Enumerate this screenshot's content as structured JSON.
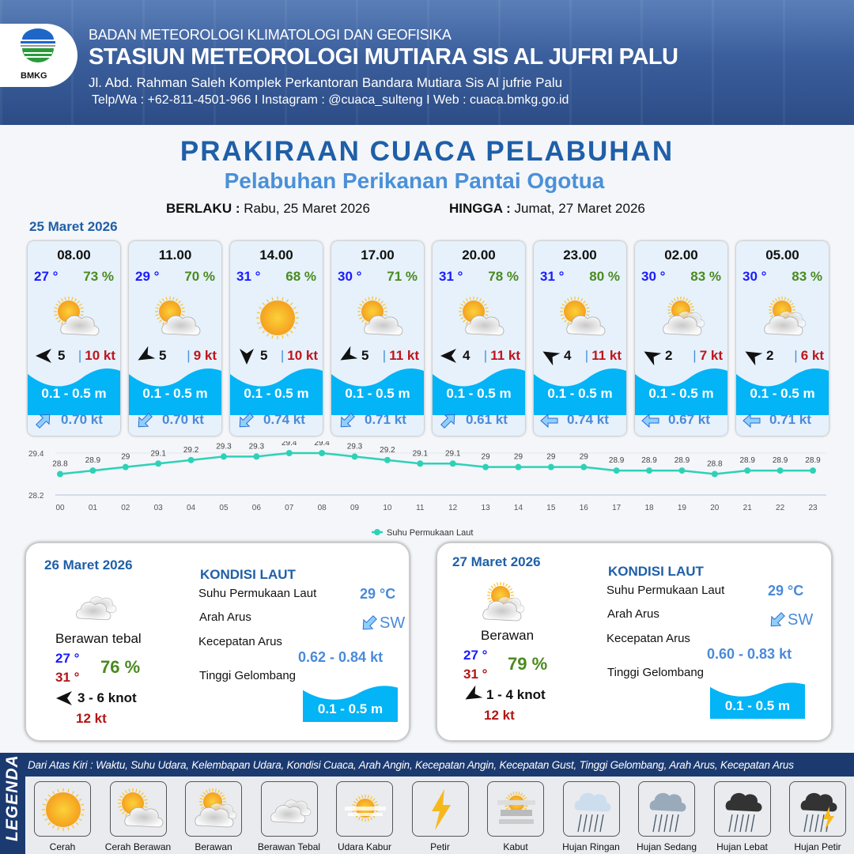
{
  "header": {
    "logo_text": "BMKG",
    "agency": "BADAN METEOROLOGI KLIMATOLOGI DAN GEOFISIKA",
    "station": "STASIUN METEOROLOGI MUTIARA SIS AL JUFRI PALU",
    "address": "Jl. Abd. Rahman Saleh Komplek Perkantoran Bandara Mutiara Sis Al jufrie Palu",
    "contact": "Telp/Wa : +62-811-4501-966  I  Instagram : @cuaca_sulteng  I  Web : cuaca.bmkg.go.id"
  },
  "title": "PRAKIRAAN CUACA PELABUHAN",
  "subtitle": "Pelabuhan Perikanan Pantai Ogotua",
  "validity": {
    "from_label": "BERLAKU :",
    "from": "Rabu, 25 Maret 2026",
    "to_label": "HINGGA :",
    "to": "Jumat, 27 Maret 2026"
  },
  "day1": {
    "date": "25 Maret 2026",
    "forecasts": [
      {
        "time": "08.00",
        "temp": "27 °",
        "humidity": "73 %",
        "weather": "cerah-berawan",
        "wind_dir_deg": 90,
        "wind_speed": "5",
        "gust": "10 kt",
        "wave": "0.1 - 0.5 m",
        "current_dir_deg": 45,
        "current_speed": "0.70 kt"
      },
      {
        "time": "11.00",
        "temp": "29 °",
        "humidity": "70 %",
        "weather": "cerah-berawan",
        "wind_dir_deg": 60,
        "wind_speed": "5",
        "gust": "9 kt",
        "wave": "0.1 - 0.5 m",
        "current_dir_deg": 225,
        "current_speed": "0.70 kt"
      },
      {
        "time": "14.00",
        "temp": "31 °",
        "humidity": "68 %",
        "weather": "cerah",
        "wind_dir_deg": 0,
        "wind_speed": "5",
        "gust": "10 kt",
        "wave": "0.1 - 0.5 m",
        "current_dir_deg": 225,
        "current_speed": "0.74 kt"
      },
      {
        "time": "17.00",
        "temp": "30 °",
        "humidity": "71 %",
        "weather": "cerah-berawan",
        "wind_dir_deg": 60,
        "wind_speed": "5",
        "gust": "11 kt",
        "wave": "0.1 - 0.5 m",
        "current_dir_deg": 225,
        "current_speed": "0.71 kt"
      },
      {
        "time": "20.00",
        "temp": "31 °",
        "humidity": "78 %",
        "weather": "cerah-berawan",
        "wind_dir_deg": 90,
        "wind_speed": "4",
        "gust": "11 kt",
        "wave": "0.1 - 0.5 m",
        "current_dir_deg": 45,
        "current_speed": "0.61 kt"
      },
      {
        "time": "23.00",
        "temp": "31 °",
        "humidity": "80 %",
        "weather": "cerah-berawan",
        "wind_dir_deg": 120,
        "wind_speed": "4",
        "gust": "11 kt",
        "wave": "0.1 - 0.5 m",
        "current_dir_deg": 270,
        "current_speed": "0.74 kt"
      },
      {
        "time": "02.00",
        "temp": "30 °",
        "humidity": "83 %",
        "weather": "berawan",
        "wind_dir_deg": 120,
        "wind_speed": "2",
        "gust": "7 kt",
        "wave": "0.1 - 0.5 m",
        "current_dir_deg": 270,
        "current_speed": "0.67 kt"
      },
      {
        "time": "05.00",
        "temp": "30 °",
        "humidity": "83 %",
        "weather": "berawan",
        "wind_dir_deg": 120,
        "wind_speed": "2",
        "gust": "6 kt",
        "wave": "0.1 - 0.5 m",
        "current_dir_deg": 270,
        "current_speed": "0.71 kt"
      }
    ]
  },
  "chart_data": {
    "type": "line",
    "x": [
      "00",
      "01",
      "02",
      "03",
      "04",
      "05",
      "06",
      "07",
      "08",
      "09",
      "10",
      "11",
      "12",
      "13",
      "14",
      "15",
      "16",
      "17",
      "18",
      "19",
      "20",
      "21",
      "22",
      "23"
    ],
    "series": [
      {
        "name": "Suhu Permukaan Laut",
        "values": [
          28.8,
          28.9,
          29.0,
          29.1,
          29.2,
          29.3,
          29.3,
          29.4,
          29.4,
          29.3,
          29.2,
          29.1,
          29.1,
          29.0,
          29.0,
          29.0,
          29.0,
          28.9,
          28.9,
          28.9,
          28.8,
          28.9,
          28.9,
          28.9
        ],
        "color": "#2ed1b8"
      }
    ],
    "y_ticks": [
      "28.2",
      "29.4"
    ],
    "ylim": [
      28.2,
      29.4
    ],
    "legend": "bottom",
    "grid": true
  },
  "outlook": [
    {
      "date": "26 Maret 2026",
      "weather": "berawan-tebal",
      "condition": "Berawan tebal",
      "temp_min": "27 °",
      "temp_max": "31 °",
      "humidity": "76 %",
      "wind_dir_deg": 90,
      "wind": "3  - 6 knot",
      "gust": "12 kt",
      "sea": {
        "heading": "KONDISI LAUT",
        "sst_label": "Suhu Permukaan Laut",
        "sst": "29 °C",
        "dir_label": "Arah Arus",
        "dir": "SW",
        "current_dir_deg": 225,
        "speed_label": "Kecepatan Arus",
        "speed": "0.62  - 0.84 kt",
        "wave_label": "Tinggi Gelombang",
        "wave": "0.1 - 0.5 m"
      }
    },
    {
      "date": "27 Maret 2026",
      "weather": "berawan",
      "condition": "Berawan",
      "temp_min": "27 °",
      "temp_max": "31 °",
      "humidity": "79 %",
      "wind_dir_deg": 60,
      "wind": "1  - 4 knot",
      "gust": "12 kt",
      "sea": {
        "heading": "KONDISI LAUT",
        "sst_label": "Suhu Permukaan Laut",
        "sst": "29 °C",
        "dir_label": "Arah Arus",
        "dir": "SW",
        "current_dir_deg": 225,
        "speed_label": "Kecepatan Arus",
        "speed": "0.60  - 0.83 kt",
        "wave_label": "Tinggi Gelombang",
        "wave": "0.1 - 0.5 m"
      }
    }
  ],
  "legend": {
    "title": "LEGENDA",
    "description": "Dari Atas Kiri : Waktu, Suhu Udara, Kelembapan Udara, Kondisi Cuaca, Arah Angin, Kecepatan Angin, Kecepatan Gust, Tinggi Gelombang, Arah Arus, Kecepatan Arus",
    "items": [
      {
        "label": "Cerah",
        "icon": "cerah"
      },
      {
        "label": "Cerah Berawan",
        "icon": "cerah-berawan"
      },
      {
        "label": "Berawan",
        "icon": "berawan"
      },
      {
        "label": "Berawan Tebal",
        "icon": "berawan-tebal"
      },
      {
        "label": "Udara Kabur",
        "icon": "udara-kabur"
      },
      {
        "label": "Petir",
        "icon": "petir"
      },
      {
        "label": "Kabut",
        "icon": "kabut"
      },
      {
        "label": "Hujan Ringan",
        "icon": "hujan-ringan"
      },
      {
        "label": "Hujan Sedang",
        "icon": "hujan-sedang"
      },
      {
        "label": "Hujan Lebat",
        "icon": "hujan-lebat"
      },
      {
        "label": "Hujan Petir",
        "icon": "hujan-petir"
      }
    ]
  }
}
